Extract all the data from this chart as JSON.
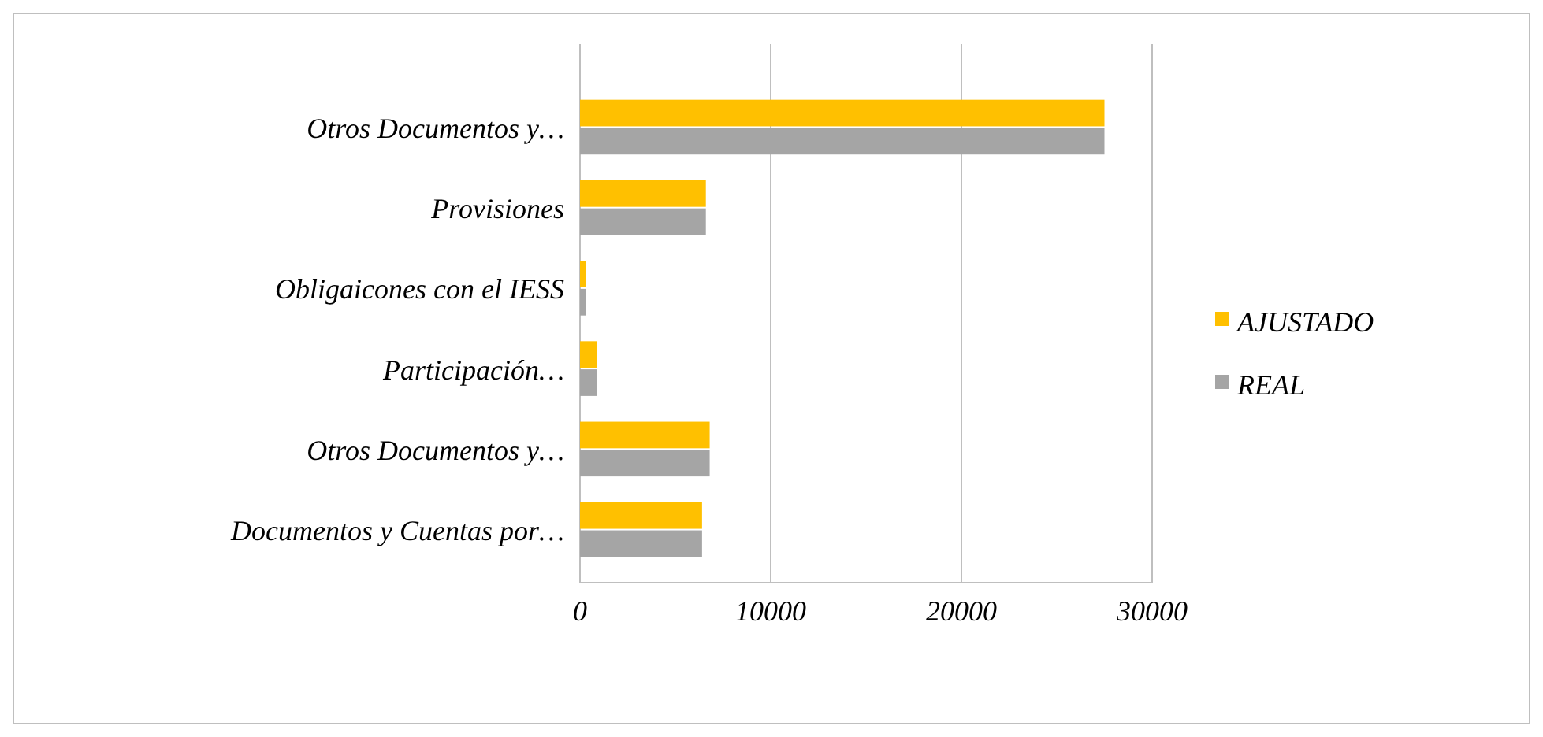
{
  "chart_data": {
    "type": "bar",
    "orientation": "horizontal",
    "categories": [
      "Otros Documentos y…",
      "Provisiones",
      "Obligaicones con el IESS",
      "Participación…",
      "Otros Documentos y…",
      "Documentos y Cuentas por…"
    ],
    "series": [
      {
        "name": "AJUSTADO",
        "color": "#ffc000",
        "values": [
          27500,
          6600,
          300,
          900,
          6800,
          6400
        ]
      },
      {
        "name": "REAL",
        "color": "#a5a5a5",
        "values": [
          27500,
          6600,
          300,
          900,
          6800,
          6400
        ]
      }
    ],
    "xlim": [
      0,
      30000
    ],
    "xticks": [
      0,
      10000,
      20000,
      30000
    ],
    "grid": "x",
    "legend": "right"
  }
}
